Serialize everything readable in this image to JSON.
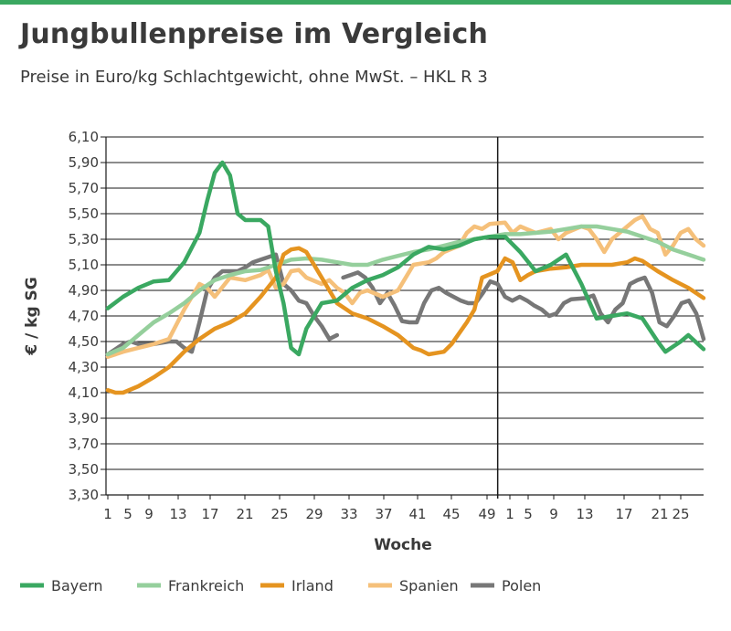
{
  "header": {
    "title": "Jungbullenpreise im Vergleich",
    "subtitle": "Preise in Euro/kg Schlachtgewicht, ohne MwSt. – HKL R 3"
  },
  "chart_data": {
    "type": "line",
    "title": "Jungbullenpreise im Vergleich",
    "subtitle": "Preise in Euro/kg Schlachtgewicht, ohne MwSt. – HKL R 3",
    "xlabel": "Woche",
    "ylabel": "€ / kg SG",
    "ylim": [
      3.3,
      6.1
    ],
    "yticks": [
      "6,10",
      "5,90",
      "5,70",
      "5,50",
      "5,30",
      "5,10",
      "4,90",
      "4,70",
      "4,50",
      "4,30",
      "4,10",
      "3,90",
      "3,70",
      "3,50",
      "3,30"
    ],
    "xticks": [
      "1",
      "5",
      "9",
      "13",
      "17",
      "21",
      "25",
      "29",
      "33",
      "37",
      "41",
      "45",
      "49",
      "1",
      "5",
      "9",
      "13",
      "17",
      "21",
      "25"
    ],
    "x_note": "index 1–79: weeks 1–52 of year 1 followed by weeks 1–27 of year 2; vertical line marks week 1 of year 2",
    "grid": true,
    "legend_position": "bottom",
    "series": [
      {
        "name": "Bayern",
        "color": "#3aa861",
        "points": [
          [
            1,
            4.76
          ],
          [
            3,
            4.85
          ],
          [
            5,
            4.92
          ],
          [
            7,
            4.97
          ],
          [
            9,
            4.98
          ],
          [
            11,
            5.12
          ],
          [
            13,
            5.35
          ],
          [
            14,
            5.6
          ],
          [
            15,
            5.82
          ],
          [
            16,
            5.9
          ],
          [
            17,
            5.8
          ],
          [
            18,
            5.5
          ],
          [
            19,
            5.45
          ],
          [
            21,
            5.45
          ],
          [
            22,
            5.4
          ],
          [
            23,
            5.05
          ],
          [
            24,
            4.8
          ],
          [
            25,
            4.45
          ],
          [
            26,
            4.4
          ],
          [
            27,
            4.6
          ],
          [
            29,
            4.8
          ],
          [
            31,
            4.82
          ],
          [
            33,
            4.92
          ],
          [
            35,
            4.98
          ],
          [
            37,
            5.02
          ],
          [
            39,
            5.08
          ],
          [
            41,
            5.18
          ],
          [
            43,
            5.24
          ],
          [
            45,
            5.22
          ],
          [
            47,
            5.25
          ],
          [
            49,
            5.3
          ],
          [
            51,
            5.32
          ],
          [
            53,
            5.32
          ],
          [
            55,
            5.2
          ],
          [
            57,
            5.05
          ],
          [
            59,
            5.1
          ],
          [
            61,
            5.18
          ],
          [
            63,
            4.95
          ],
          [
            65,
            4.68
          ],
          [
            67,
            4.7
          ],
          [
            69,
            4.72
          ],
          [
            71,
            4.68
          ],
          [
            73,
            4.5
          ],
          [
            74,
            4.42
          ],
          [
            76,
            4.5
          ],
          [
            77,
            4.55
          ],
          [
            79,
            4.44
          ]
        ]
      },
      {
        "name": "Frankreich",
        "color": "#95cf9c",
        "points": [
          [
            1,
            4.4
          ],
          [
            3,
            4.45
          ],
          [
            5,
            4.55
          ],
          [
            7,
            4.65
          ],
          [
            9,
            4.72
          ],
          [
            11,
            4.8
          ],
          [
            13,
            4.9
          ],
          [
            15,
            4.98
          ],
          [
            17,
            5.02
          ],
          [
            19,
            5.05
          ],
          [
            21,
            5.06
          ],
          [
            23,
            5.1
          ],
          [
            25,
            5.14
          ],
          [
            27,
            5.15
          ],
          [
            29,
            5.14
          ],
          [
            31,
            5.12
          ],
          [
            33,
            5.1
          ],
          [
            35,
            5.1
          ],
          [
            37,
            5.14
          ],
          [
            39,
            5.17
          ],
          [
            41,
            5.2
          ],
          [
            43,
            5.22
          ],
          [
            45,
            5.25
          ],
          [
            47,
            5.28
          ],
          [
            49,
            5.3
          ],
          [
            51,
            5.32
          ],
          [
            53,
            5.34
          ],
          [
            55,
            5.34
          ],
          [
            57,
            5.35
          ],
          [
            59,
            5.36
          ],
          [
            61,
            5.38
          ],
          [
            63,
            5.4
          ],
          [
            65,
            5.4
          ],
          [
            67,
            5.38
          ],
          [
            69,
            5.36
          ],
          [
            71,
            5.32
          ],
          [
            73,
            5.28
          ],
          [
            75,
            5.22
          ],
          [
            77,
            5.18
          ],
          [
            79,
            5.14
          ]
        ]
      },
      {
        "name": "Irland",
        "color": "#e59420",
        "points": [
          [
            1,
            4.12
          ],
          [
            2,
            4.1
          ],
          [
            3,
            4.1
          ],
          [
            5,
            4.15
          ],
          [
            7,
            4.22
          ],
          [
            9,
            4.3
          ],
          [
            11,
            4.42
          ],
          [
            13,
            4.52
          ],
          [
            15,
            4.6
          ],
          [
            17,
            4.65
          ],
          [
            19,
            4.72
          ],
          [
            21,
            4.85
          ],
          [
            23,
            5.0
          ],
          [
            24,
            5.18
          ],
          [
            25,
            5.22
          ],
          [
            26,
            5.23
          ],
          [
            27,
            5.2
          ],
          [
            28,
            5.1
          ],
          [
            29,
            5.0
          ],
          [
            31,
            4.8
          ],
          [
            33,
            4.72
          ],
          [
            35,
            4.68
          ],
          [
            37,
            4.62
          ],
          [
            39,
            4.55
          ],
          [
            41,
            4.45
          ],
          [
            42,
            4.43
          ],
          [
            43,
            4.4
          ],
          [
            45,
            4.42
          ],
          [
            46,
            4.48
          ],
          [
            48,
            4.65
          ],
          [
            49,
            4.75
          ],
          [
            50,
            5.0
          ],
          [
            52,
            5.05
          ],
          [
            53,
            5.15
          ],
          [
            54,
            5.12
          ],
          [
            55,
            4.98
          ],
          [
            56,
            5.02
          ],
          [
            57,
            5.05
          ],
          [
            59,
            5.07
          ],
          [
            61,
            5.08
          ],
          [
            63,
            5.1
          ],
          [
            65,
            5.1
          ],
          [
            67,
            5.1
          ],
          [
            69,
            5.12
          ],
          [
            70,
            5.15
          ],
          [
            71,
            5.13
          ],
          [
            73,
            5.05
          ],
          [
            75,
            4.98
          ],
          [
            77,
            4.92
          ],
          [
            79,
            4.84
          ]
        ]
      },
      {
        "name": "Spanien",
        "color": "#f5c07a",
        "points": [
          [
            1,
            4.38
          ],
          [
            3,
            4.42
          ],
          [
            5,
            4.45
          ],
          [
            7,
            4.48
          ],
          [
            9,
            4.52
          ],
          [
            11,
            4.75
          ],
          [
            13,
            4.95
          ],
          [
            14,
            4.92
          ],
          [
            15,
            4.85
          ],
          [
            17,
            5.0
          ],
          [
            19,
            4.98
          ],
          [
            21,
            5.02
          ],
          [
            22,
            5.06
          ],
          [
            23,
            4.92
          ],
          [
            24,
            4.95
          ],
          [
            25,
            5.05
          ],
          [
            26,
            5.06
          ],
          [
            27,
            5.0
          ],
          [
            29,
            4.95
          ],
          [
            30,
            4.98
          ],
          [
            31,
            4.92
          ],
          [
            32,
            4.88
          ],
          [
            33,
            4.8
          ],
          [
            34,
            4.88
          ],
          [
            35,
            4.9
          ],
          [
            37,
            4.85
          ],
          [
            39,
            4.9
          ],
          [
            41,
            5.1
          ],
          [
            43,
            5.12
          ],
          [
            44,
            5.15
          ],
          [
            45,
            5.2
          ],
          [
            47,
            5.25
          ],
          [
            48,
            5.35
          ],
          [
            49,
            5.4
          ],
          [
            50,
            5.38
          ],
          [
            51,
            5.42
          ],
          [
            53,
            5.43
          ],
          [
            54,
            5.35
          ],
          [
            55,
            5.4
          ],
          [
            57,
            5.35
          ],
          [
            59,
            5.38
          ],
          [
            60,
            5.3
          ],
          [
            61,
            5.35
          ],
          [
            63,
            5.4
          ],
          [
            64,
            5.38
          ],
          [
            65,
            5.3
          ],
          [
            66,
            5.2
          ],
          [
            67,
            5.3
          ],
          [
            69,
            5.4
          ],
          [
            70,
            5.45
          ],
          [
            71,
            5.48
          ],
          [
            72,
            5.38
          ],
          [
            73,
            5.35
          ],
          [
            74,
            5.18
          ],
          [
            75,
            5.25
          ],
          [
            76,
            5.35
          ],
          [
            77,
            5.38
          ],
          [
            78,
            5.3
          ],
          [
            79,
            5.25
          ]
        ]
      },
      {
        "name": "Polen",
        "color": "#777777",
        "points": [
          [
            1,
            4.4
          ],
          [
            3,
            4.48
          ],
          [
            4,
            4.5
          ],
          [
            5,
            4.48
          ],
          [
            7,
            4.48
          ],
          [
            9,
            4.5
          ],
          [
            10,
            4.5
          ],
          [
            11,
            4.45
          ],
          [
            12,
            4.42
          ],
          [
            13,
            4.65
          ],
          [
            14,
            4.9
          ],
          [
            15,
            5.0
          ],
          [
            16,
            5.05
          ],
          [
            18,
            5.05
          ],
          [
            19,
            5.08
          ],
          [
            20,
            5.12
          ],
          [
            21,
            5.14
          ],
          [
            22,
            5.16
          ],
          [
            23,
            5.18
          ],
          [
            24,
            4.95
          ],
          [
            25,
            4.9
          ],
          [
            26,
            4.82
          ],
          [
            27,
            4.8
          ],
          [
            28,
            4.7
          ],
          [
            29,
            4.62
          ],
          [
            30,
            4.52
          ],
          [
            31,
            4.55
          ]
        ],
        "points2": [
          [
            33,
            5.0
          ],
          [
            34,
            5.02
          ],
          [
            35,
            5.04
          ],
          [
            36,
            5.0
          ],
          [
            37,
            4.92
          ],
          [
            38,
            4.8
          ],
          [
            39,
            4.88
          ],
          [
            40,
            4.78
          ],
          [
            41,
            4.66
          ],
          [
            42,
            4.65
          ],
          [
            43,
            4.65
          ],
          [
            44,
            4.8
          ],
          [
            45,
            4.9
          ],
          [
            46,
            4.92
          ],
          [
            47,
            4.88
          ],
          [
            48,
            4.85
          ],
          [
            49,
            4.82
          ],
          [
            50,
            4.8
          ],
          [
            51,
            4.8
          ],
          [
            52,
            4.88
          ],
          [
            53,
            4.97
          ],
          [
            54,
            4.95
          ],
          [
            55,
            4.85
          ],
          [
            56,
            4.82
          ],
          [
            57,
            4.85
          ],
          [
            58,
            4.82
          ],
          [
            59,
            4.78
          ],
          [
            60,
            4.75
          ],
          [
            61,
            4.7
          ],
          [
            62,
            4.72
          ],
          [
            63,
            4.8
          ],
          [
            64,
            4.83
          ],
          [
            66,
            4.84
          ],
          [
            67,
            4.86
          ],
          [
            68,
            4.72
          ],
          [
            69,
            4.65
          ],
          [
            70,
            4.75
          ],
          [
            71,
            4.8
          ],
          [
            72,
            4.95
          ],
          [
            73,
            4.98
          ],
          [
            74,
            5.0
          ],
          [
            75,
            4.88
          ],
          [
            76,
            4.65
          ],
          [
            77,
            4.62
          ],
          [
            78,
            4.7
          ],
          [
            79,
            4.8
          ],
          [
            80,
            4.82
          ],
          [
            81,
            4.72
          ],
          [
            82,
            4.52
          ]
        ]
      }
    ]
  }
}
